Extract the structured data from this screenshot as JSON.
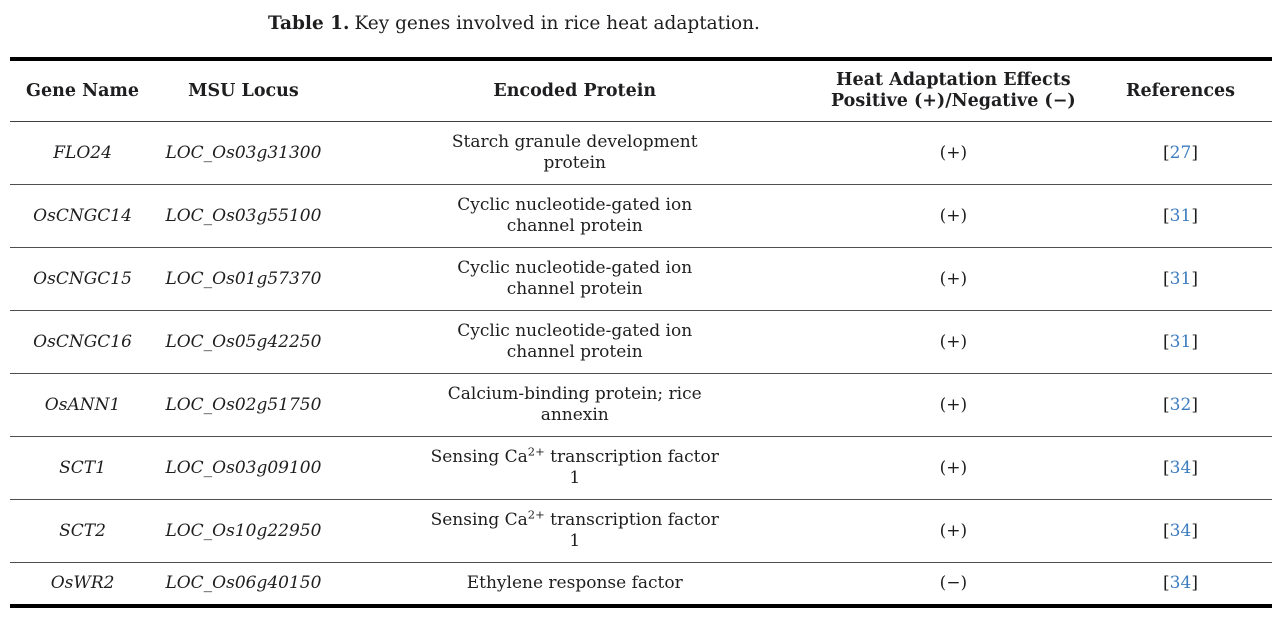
{
  "caption": {
    "label": "Table 1.",
    "text": "Key genes involved in rice heat adaptation."
  },
  "colors": {
    "link_blue": "#3d7dbf",
    "text": "#1e1e20",
    "rule_heavy": "#000000",
    "rule_light": "#4f4f4f"
  },
  "table": {
    "headers": [
      {
        "key": "gene-name",
        "lines": [
          "Gene Name"
        ]
      },
      {
        "key": "msu-locus",
        "lines": [
          "MSU Locus"
        ]
      },
      {
        "key": "encoded-protein",
        "lines": [
          "Encoded Protein"
        ]
      },
      {
        "key": "heat-adaptation-effects",
        "lines": [
          "Heat Adaptation Effects",
          "Positive (+)/Negative (−)"
        ]
      },
      {
        "key": "references",
        "lines": [
          "References"
        ]
      }
    ],
    "rows": [
      {
        "gene": "FLO24",
        "locus": "LOC_Os03g31300",
        "protein_lines": [
          [
            {
              "t": "Starch granule development"
            }
          ],
          [
            {
              "t": "protein"
            }
          ]
        ],
        "effect": "(+)",
        "reference": {
          "open": "[",
          "number": "27",
          "close": "]"
        }
      },
      {
        "gene": "OsCNGC14",
        "locus": "LOC_Os03g55100",
        "protein_lines": [
          [
            {
              "t": "Cyclic nucleotide-gated ion"
            }
          ],
          [
            {
              "t": "channel protein"
            }
          ]
        ],
        "effect": "(+)",
        "reference": {
          "open": "[",
          "number": "31",
          "close": "]"
        }
      },
      {
        "gene": "OsCNGC15",
        "locus": "LOC_Os01g57370",
        "protein_lines": [
          [
            {
              "t": "Cyclic nucleotide-gated ion"
            }
          ],
          [
            {
              "t": "channel protein"
            }
          ]
        ],
        "effect": "(+)",
        "reference": {
          "open": "[",
          "number": "31",
          "close": "]"
        }
      },
      {
        "gene": "OsCNGC16",
        "locus": "LOC_Os05g42250",
        "protein_lines": [
          [
            {
              "t": "Cyclic nucleotide-gated ion"
            }
          ],
          [
            {
              "t": "channel protein"
            }
          ]
        ],
        "effect": "(+)",
        "reference": {
          "open": "[",
          "number": "31",
          "close": "]"
        }
      },
      {
        "gene": "OsANN1",
        "locus": "LOC_Os02g51750",
        "protein_lines": [
          [
            {
              "t": "Calcium-binding protein; rice"
            }
          ],
          [
            {
              "t": "annexin"
            }
          ]
        ],
        "effect": "(+)",
        "reference": {
          "open": "[",
          "number": "32",
          "close": "]"
        }
      },
      {
        "gene": "SCT1",
        "locus": "LOC_Os03g09100",
        "protein_lines": [
          [
            {
              "t": "Sensing Ca"
            },
            {
              "t": "2+",
              "sup": true
            },
            {
              "t": " transcription factor"
            }
          ],
          [
            {
              "t": "1"
            }
          ]
        ],
        "effect": "(+)",
        "reference": {
          "open": "[",
          "number": "34",
          "close": "]"
        }
      },
      {
        "gene": "SCT2",
        "locus": "LOC_Os10g22950",
        "protein_lines": [
          [
            {
              "t": "Sensing Ca"
            },
            {
              "t": "2+",
              "sup": true
            },
            {
              "t": " transcription factor"
            }
          ],
          [
            {
              "t": "1"
            }
          ]
        ],
        "effect": "(+)",
        "reference": {
          "open": "[",
          "number": "34",
          "close": "]"
        }
      },
      {
        "gene": "OsWR2",
        "locus": "LOC_Os06g40150",
        "protein_lines": [
          [
            {
              "t": "Ethylene response factor"
            }
          ]
        ],
        "effect": "(−)",
        "reference": {
          "open": "[",
          "number": "34",
          "close": "]"
        }
      }
    ]
  }
}
